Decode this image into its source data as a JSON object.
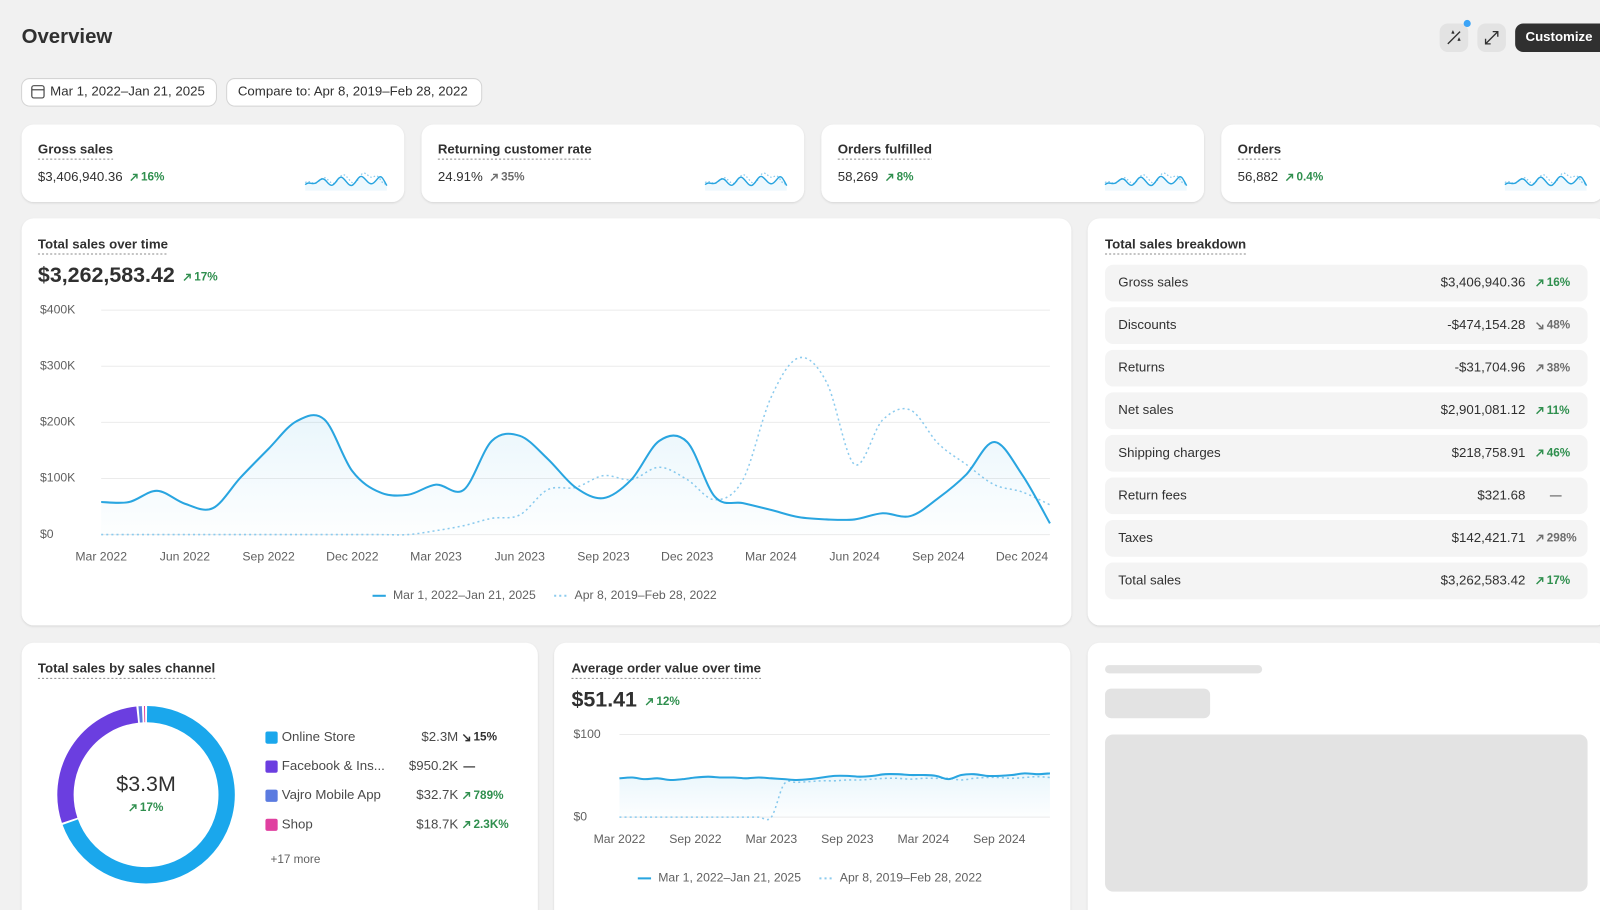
{
  "header": {
    "title": "Overview",
    "customize": "Customize"
  },
  "filters": {
    "date_range": "Mar 1, 2022–Jan 21, 2025",
    "compare": "Compare to: Apr 8, 2019–Feb 28, 2022"
  },
  "kpis": [
    {
      "label": "Gross sales",
      "value": "$3,406,940.36",
      "change": "16%",
      "direction": "up",
      "color": "#2f8f4e"
    },
    {
      "label": "Returning customer rate",
      "value": "24.91%",
      "change": "35%",
      "direction": "up",
      "color": "#6d6d6d"
    },
    {
      "label": "Orders fulfilled",
      "value": "58,269",
      "change": "8%",
      "direction": "up",
      "color": "#2f8f4e"
    },
    {
      "label": "Orders",
      "value": "56,882",
      "change": "0.4%",
      "direction": "up",
      "color": "#2f8f4e"
    }
  ],
  "chart_data": [
    {
      "type": "line",
      "title": "Total sales over time",
      "total": "$3,262,583.42",
      "change": "17%",
      "change_direction": "up",
      "change_color": "#2f8f4e",
      "categories": [
        "Mar 2022",
        null,
        null,
        "Jun 2022",
        null,
        null,
        "Sep 2022",
        null,
        null,
        "Dec 2022",
        null,
        null,
        "Mar 2023",
        null,
        null,
        "Jun 2023",
        null,
        null,
        "Sep 2023",
        null,
        null,
        "Dec 2023",
        null,
        null,
        "Mar 2024",
        null,
        null,
        "Jun 2024",
        null,
        null,
        "Sep 2024",
        null,
        null,
        "Dec 2024",
        null
      ],
      "series": [
        {
          "name": "Mar 1, 2022–Jan 21, 2025",
          "color": "#29a5e0",
          "style": "solid",
          "values": [
            58000,
            58000,
            78000,
            55000,
            47000,
            102000,
            153000,
            202000,
            205000,
            113000,
            75000,
            71000,
            89000,
            80000,
            167000,
            176000,
            135000,
            84000,
            65000,
            98000,
            167000,
            165000,
            67000,
            56000,
            44000,
            31000,
            27000,
            27000,
            38000,
            33000,
            65000,
            107000,
            165000,
            107000,
            20000
          ]
        },
        {
          "name": "Apr 8, 2019–Feb 28, 2022",
          "color": "#8ccbee",
          "style": "dotted",
          "values": [
            0,
            0,
            0,
            0,
            0,
            0,
            0,
            0,
            0,
            0,
            0,
            0,
            7000,
            16000,
            29000,
            35000,
            80000,
            84000,
            105000,
            98000,
            120000,
            98000,
            62000,
            98000,
            244000,
            315000,
            271000,
            125000,
            204000,
            222000,
            162000,
            125000,
            89000,
            76000,
            53000
          ]
        }
      ],
      "ylim": [
        0,
        400000
      ],
      "yticks": [
        {
          "value": 0,
          "label": "$0"
        },
        {
          "value": 100000,
          "label": "$100K"
        },
        {
          "value": 200000,
          "label": "$200K"
        },
        {
          "value": 300000,
          "label": "$300K"
        },
        {
          "value": 400000,
          "label": "$400K"
        }
      ],
      "grid": true
    },
    {
      "type": "donut",
      "title": "Total sales by sales channel",
      "center_value": "$3.3M",
      "center_change": "17%",
      "center_change_direction": "up",
      "center_change_color": "#2f8f4e",
      "categories": [
        "Online Store",
        "Facebook & Ins...",
        "Vajro Mobile App",
        "Shop"
      ],
      "values": [
        2300000,
        950200,
        32700,
        18700
      ],
      "value_labels": [
        "$2.3M",
        "$950.2K",
        "$32.7K",
        "$18.7K"
      ],
      "colors": [
        "#1aa7ec",
        "#6b3ee0",
        "#5b7be0",
        "#e040a0"
      ],
      "changes": [
        "15%",
        "—",
        "789%",
        "2.3K%"
      ],
      "change_directions": [
        "down",
        null,
        "up",
        "up"
      ],
      "change_colors": [
        "#303030",
        "#303030",
        "#2f8f4e",
        "#2f8f4e"
      ],
      "more": "+17 more"
    },
    {
      "type": "line",
      "title": "Average order value over time",
      "total": "$51.41",
      "change": "12%",
      "change_direction": "up",
      "change_color": "#2f8f4e",
      "categories": [
        "Mar 2022",
        null,
        null,
        null,
        null,
        null,
        "Sep 2022",
        null,
        null,
        null,
        null,
        null,
        "Mar 2023",
        null,
        null,
        null,
        null,
        null,
        "Sep 2023",
        null,
        null,
        null,
        null,
        null,
        "Mar 2024",
        null,
        null,
        null,
        null,
        null,
        "Sep 2024",
        null,
        null,
        null,
        null
      ],
      "series": [
        {
          "name": "Mar 1, 2022–Jan 21, 2025",
          "color": "#29a5e0",
          "style": "solid",
          "values": [
            47,
            48,
            46,
            47,
            45,
            46,
            48,
            49,
            48,
            48,
            47,
            48,
            47,
            46,
            45,
            46,
            48,
            50,
            50,
            49,
            50,
            52,
            52,
            51,
            51,
            50,
            46,
            51,
            52,
            50,
            50,
            51,
            53,
            52,
            53
          ]
        },
        {
          "name": "Apr 8, 2019–Feb 28, 2022",
          "color": "#8ccbee",
          "style": "dotted",
          "values": [
            0,
            0,
            0,
            0,
            0,
            0,
            0,
            0,
            0,
            0,
            0,
            0,
            0,
            40,
            42,
            43,
            44,
            44,
            45,
            45,
            46,
            47,
            47,
            46,
            47,
            47,
            47,
            45,
            47,
            48,
            48,
            47,
            48,
            49,
            48
          ]
        }
      ],
      "ylim": [
        0,
        100
      ],
      "yticks": [
        {
          "value": 0,
          "label": "$0"
        },
        {
          "value": 100,
          "label": "$100"
        }
      ],
      "grid": true
    }
  ],
  "breakdown": {
    "title": "Total sales breakdown",
    "rows": [
      {
        "label": "Gross sales",
        "value": "$3,406,940.36",
        "change": "16%",
        "direction": "up",
        "color": "#2f8f4e"
      },
      {
        "label": "Discounts",
        "value": "-$474,154.28",
        "change": "48%",
        "direction": "down",
        "color": "#6d6d6d"
      },
      {
        "label": "Returns",
        "value": "-$31,704.96",
        "change": "38%",
        "direction": "up",
        "color": "#6d6d6d"
      },
      {
        "label": "Net sales",
        "value": "$2,901,081.12",
        "change": "11%",
        "direction": "up",
        "color": "#2f8f4e"
      },
      {
        "label": "Shipping charges",
        "value": "$218,758.91",
        "change": "46%",
        "direction": "up",
        "color": "#2f8f4e"
      },
      {
        "label": "Return fees",
        "value": "$321.68",
        "change": "—",
        "direction": null,
        "color": "#6d6d6d"
      },
      {
        "label": "Taxes",
        "value": "$142,421.71",
        "change": "298%",
        "direction": "up",
        "color": "#6d6d6d"
      },
      {
        "label": "Total sales",
        "value": "$3,262,583.42",
        "change": "17%",
        "direction": "up",
        "color": "#2f8f4e"
      }
    ]
  }
}
